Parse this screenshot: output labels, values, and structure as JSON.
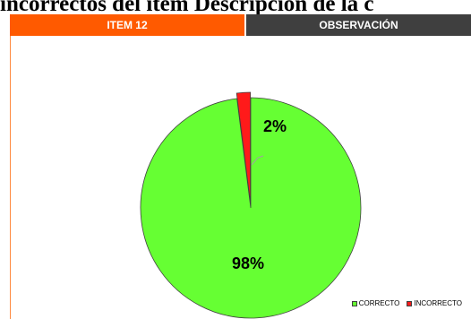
{
  "title": "incorrectos del ítem Descripción de la c",
  "header": {
    "col1_label": "ITEM 12",
    "col2_label": "OBSERVACIÓN"
  },
  "colors": {
    "orange": "#ff5a00",
    "dark": "#3f3f3f",
    "panel_border": "#ff8a40",
    "correct": "#66ff33",
    "incorrect": "#ff1a1a"
  },
  "chart_data": {
    "type": "pie",
    "categories": [
      "CORRECTO",
      "INCORRECTO"
    ],
    "values": [
      98,
      2
    ],
    "data_labels": [
      "98%",
      "2%"
    ],
    "title": "",
    "legend_position": "bottom-right"
  }
}
